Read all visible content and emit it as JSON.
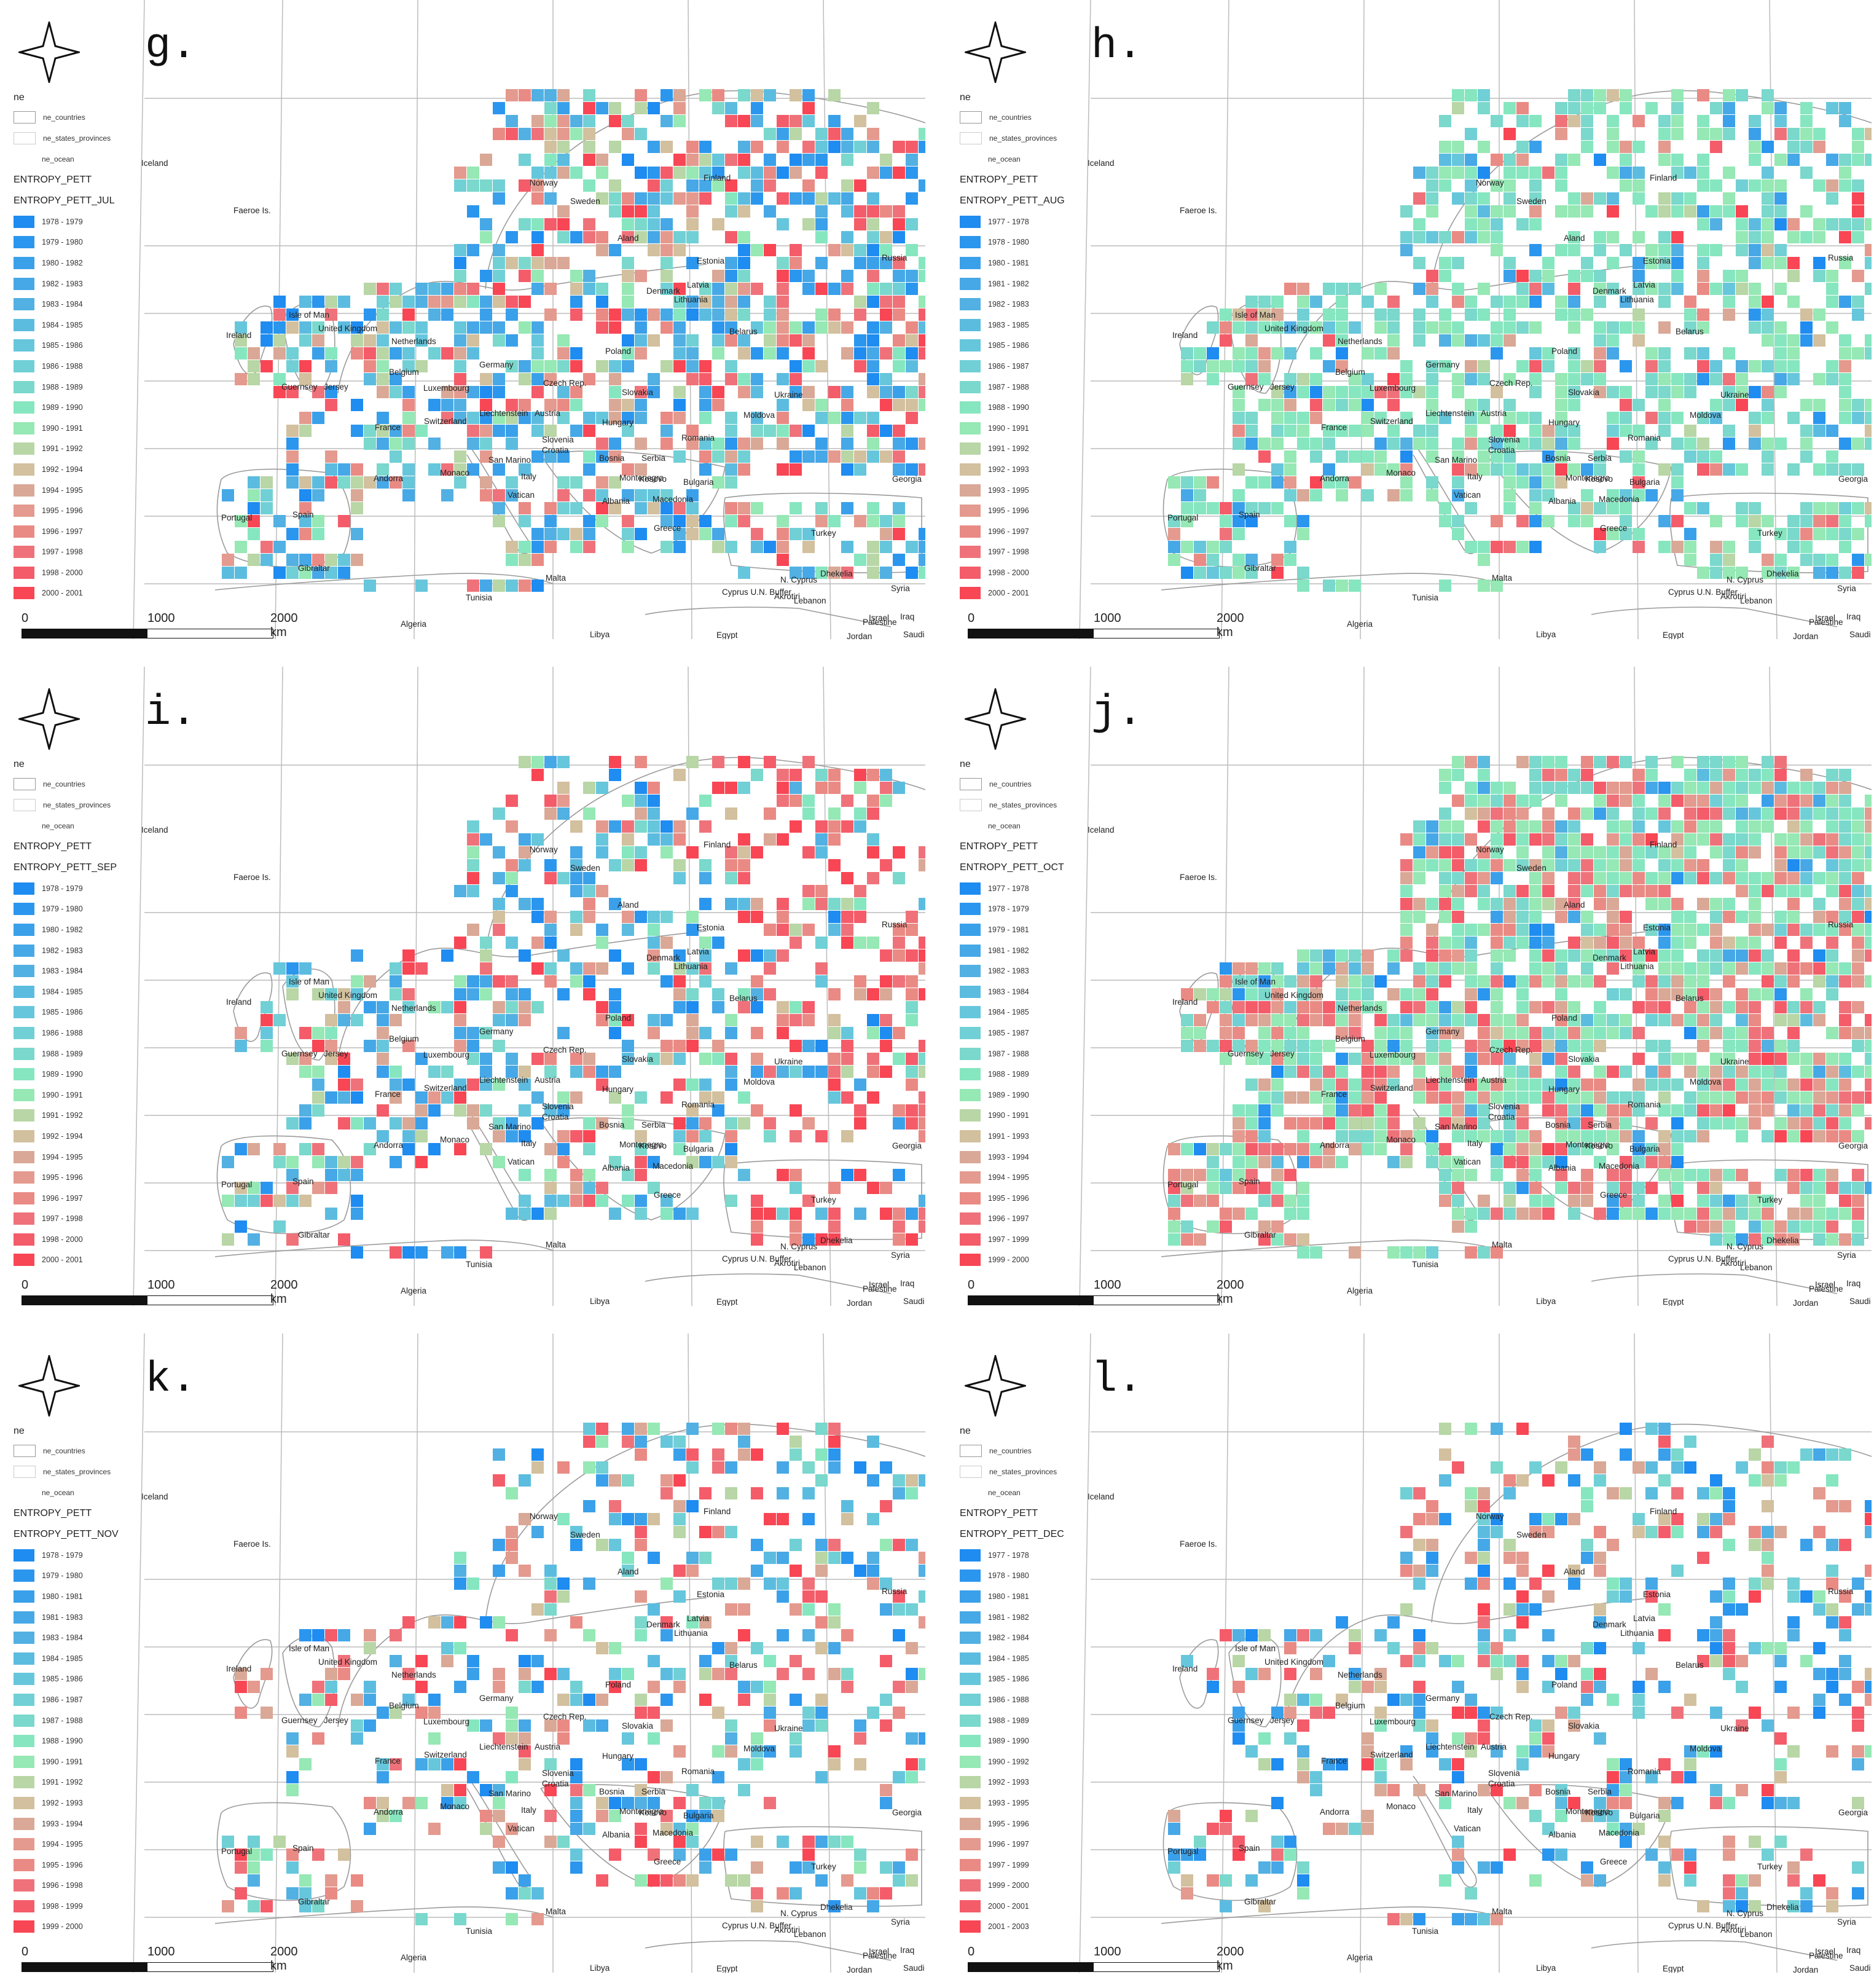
{
  "panels": [
    {
      "label": "g.",
      "layer_root": "ne",
      "layers": [
        "ne_countries",
        "ne_states_provinces",
        "ne_ocean"
      ],
      "style_root": "ENTROPY_PETT",
      "field": "ENTROPY_PETT_JUL",
      "classes": [
        "1978 - 1979",
        "1979 - 1980",
        "1980 - 1982",
        "1982 - 1983",
        "1983 - 1984",
        "1984 - 1985",
        "1985 - 1986",
        "1986 - 1988",
        "1988 - 1989",
        "1989 - 1990",
        "1990 - 1991",
        "1991 - 1992",
        "1992 - 1994",
        "1994 - 1995",
        "1995 - 1996",
        "1996 - 1997",
        "1997 - 1998",
        "1998 - 2000",
        "2000 - 2001"
      ],
      "scale": [
        "0",
        "1000",
        "2000 km"
      ],
      "pattern": "mixed"
    },
    {
      "label": "h.",
      "layer_root": "ne",
      "layers": [
        "ne_countries",
        "ne_states_provinces",
        "ne_ocean"
      ],
      "style_root": "ENTROPY_PETT",
      "field": "ENTROPY_PETT_AUG",
      "classes": [
        "1977 - 1978",
        "1978 - 1980",
        "1980 - 1981",
        "1981 - 1982",
        "1982 - 1983",
        "1983 - 1985",
        "1985 - 1986",
        "1986 - 1987",
        "1987 - 1988",
        "1988 - 1990",
        "1990 - 1991",
        "1991 - 1992",
        "1992 - 1993",
        "1993 - 1995",
        "1995 - 1996",
        "1996 - 1997",
        "1997 - 1998",
        "1998 - 2000",
        "2000 - 2001"
      ],
      "scale": [
        "0",
        "1000",
        "2000 km"
      ],
      "pattern": "green"
    },
    {
      "label": "i.",
      "layer_root": "ne",
      "layers": [
        "ne_countries",
        "ne_states_provinces",
        "ne_ocean"
      ],
      "style_root": "ENTROPY_PETT",
      "field": "ENTROPY_PETT_SEP",
      "classes": [
        "1978 - 1979",
        "1979 - 1980",
        "1980 - 1982",
        "1982 - 1983",
        "1983 - 1984",
        "1984 - 1985",
        "1985 - 1986",
        "1986 - 1988",
        "1988 - 1989",
        "1989 - 1990",
        "1990 - 1991",
        "1991 - 1992",
        "1992 - 1994",
        "1994 - 1995",
        "1995 - 1996",
        "1996 - 1997",
        "1997 - 1998",
        "1998 - 2000",
        "2000 - 2001"
      ],
      "scale": [
        "0",
        "1000",
        "2000 km"
      ],
      "pattern": "red-east"
    },
    {
      "label": "j.",
      "layer_root": "ne",
      "layers": [
        "ne_countries",
        "ne_states_provinces",
        "ne_ocean"
      ],
      "style_root": "ENTROPY_PETT",
      "field": "ENTROPY_PETT_OCT",
      "classes": [
        "1977 - 1978",
        "1978 - 1979",
        "1979 - 1981",
        "1981 - 1982",
        "1982 - 1983",
        "1983 - 1984",
        "1984 - 1985",
        "1985 - 1987",
        "1987 - 1988",
        "1988 - 1989",
        "1989 - 1990",
        "1990 - 1991",
        "1991 - 1993",
        "1993 - 1994",
        "1994 - 1995",
        "1995 - 1996",
        "1996 - 1997",
        "1997 - 1999",
        "1999 - 2000"
      ],
      "scale": [
        "0",
        "1000",
        "2000 km"
      ],
      "pattern": "dense"
    },
    {
      "label": "k.",
      "layer_root": "ne",
      "layers": [
        "ne_countries",
        "ne_states_provinces",
        "ne_ocean"
      ],
      "style_root": "ENTROPY_PETT",
      "field": "ENTROPY_PETT_NOV",
      "classes": [
        "1978 - 1979",
        "1979 - 1980",
        "1980 - 1981",
        "1981 - 1983",
        "1983 - 1984",
        "1984 - 1985",
        "1985 - 1986",
        "1986 - 1987",
        "1987 - 1988",
        "1988 - 1990",
        "1990 - 1991",
        "1991 - 1992",
        "1992 - 1993",
        "1993 - 1994",
        "1994 - 1995",
        "1995 - 1996",
        "1996 - 1998",
        "1998 - 1999",
        "1999 - 2000"
      ],
      "scale": [
        "0",
        "1000",
        "2000 km"
      ],
      "pattern": "sparse"
    },
    {
      "label": "l.",
      "layer_root": "ne",
      "layers": [
        "ne_countries",
        "ne_states_provinces",
        "ne_ocean"
      ],
      "style_root": "ENTROPY_PETT",
      "field": "ENTROPY_PETT_DEC",
      "classes": [
        "1977 - 1978",
        "1978 - 1980",
        "1980 - 1981",
        "1981 - 1982",
        "1982 - 1984",
        "1984 - 1985",
        "1985 - 1986",
        "1986 - 1988",
        "1988 - 1989",
        "1989 - 1990",
        "1990 - 1992",
        "1992 - 1993",
        "1993 - 1995",
        "1995 - 1996",
        "1996 - 1997",
        "1997 - 1999",
        "1999 - 2000",
        "2000 - 2001",
        "2001 - 2003"
      ],
      "scale": [
        "0",
        "1000",
        "2000 km"
      ],
      "pattern": "sparse"
    }
  ],
  "class_colors": [
    "#1e8cf0",
    "#2b96ee",
    "#3aa0ea",
    "#46a8e6",
    "#52b0e2",
    "#5cbce0",
    "#66c6dc",
    "#70d0d6",
    "#7ad8cc",
    "#86e6c0",
    "#96e8b4",
    "#b8d6a6",
    "#d2c09e",
    "#daa896",
    "#e49a8e",
    "#ea8a84",
    "#ef727a",
    "#f45c6a",
    "#f84655"
  ],
  "places": [
    {
      "name": "Iceland"
    },
    {
      "name": "Faeroe Is."
    },
    {
      "name": "Norway"
    },
    {
      "name": "Sweden"
    },
    {
      "name": "Finland"
    },
    {
      "name": "Aland"
    },
    {
      "name": "Estonia"
    },
    {
      "name": "Russia"
    },
    {
      "name": "Latvia"
    },
    {
      "name": "Denmark"
    },
    {
      "name": "Lithuania"
    },
    {
      "name": "Isle of Man"
    },
    {
      "name": "United Kingdom"
    },
    {
      "name": "Ireland"
    },
    {
      "name": "Netherlands"
    },
    {
      "name": "Belarus"
    },
    {
      "name": "Belgium"
    },
    {
      "name": "Germany"
    },
    {
      "name": "Poland"
    },
    {
      "name": "Guernsey"
    },
    {
      "name": "Jersey"
    },
    {
      "name": "Luxembourg"
    },
    {
      "name": "Czech Rep."
    },
    {
      "name": "Slovakia"
    },
    {
      "name": "Ukraine"
    },
    {
      "name": "Liechtenstein"
    },
    {
      "name": "Austria"
    },
    {
      "name": "France"
    },
    {
      "name": "Switzerland"
    },
    {
      "name": "Hungary"
    },
    {
      "name": "Moldova"
    },
    {
      "name": "Slovenia"
    },
    {
      "name": "Croatia"
    },
    {
      "name": "Romania"
    },
    {
      "name": "San Marino"
    },
    {
      "name": "Bosnia"
    },
    {
      "name": "Serbia"
    },
    {
      "name": "Andorra"
    },
    {
      "name": "Monaco"
    },
    {
      "name": "Italy"
    },
    {
      "name": "Montenegro"
    },
    {
      "name": "Kosovo"
    },
    {
      "name": "Bulgaria"
    },
    {
      "name": "Georgia"
    },
    {
      "name": "Vatican"
    },
    {
      "name": "Albania"
    },
    {
      "name": "Macedonia"
    },
    {
      "name": "Portugal"
    },
    {
      "name": "Spain"
    },
    {
      "name": "Greece"
    },
    {
      "name": "Turkey"
    },
    {
      "name": "Gibraltar"
    },
    {
      "name": "Malta"
    },
    {
      "name": "N. Cyprus"
    },
    {
      "name": "Dhekelia"
    },
    {
      "name": "Syria"
    },
    {
      "name": "Cyprus U.N. Buffer"
    },
    {
      "name": "Akrotiri"
    },
    {
      "name": "Lebanon"
    },
    {
      "name": "Tunisia"
    },
    {
      "name": "Algeria"
    },
    {
      "name": "Libya"
    },
    {
      "name": "Egypt"
    },
    {
      "name": "Palestine"
    },
    {
      "name": "Israel"
    },
    {
      "name": "Jordan"
    },
    {
      "name": "Iraq"
    },
    {
      "name": "Saudi Arabia"
    }
  ]
}
